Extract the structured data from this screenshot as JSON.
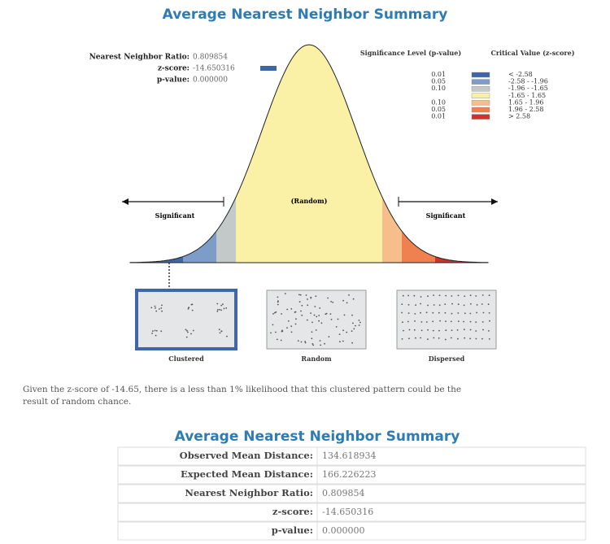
{
  "title": "Average Nearest Neighbor Summary",
  "stats": [
    {
      "label": "Nearest Neighbor Ratio:",
      "value": "0.809854"
    },
    {
      "label": "z-score:",
      "value": "-14.650316"
    },
    {
      "label": "p-value:",
      "value": "0.000000"
    }
  ],
  "legend": {
    "significance_header": "Significance Level (p-value)",
    "critical_header": "Critical Value (z-score)",
    "rows": [
      {
        "p": "0.01",
        "critical": "< -2.58",
        "color": "#3f67a8"
      },
      {
        "p": "0.05",
        "critical": "-2.58 - -1.96",
        "color": "#7d9cc8"
      },
      {
        "p": "0.10",
        "critical": "-1.96 - -1.65",
        "color": "#c3c9c8"
      },
      {
        "critical": "-1.65 - 1.65",
        "color": "#fbf1a6"
      },
      {
        "p": "0.10",
        "critical": "1.65 - 1.96",
        "color": "#f6be8a"
      },
      {
        "p": "0.05",
        "critical": "1.96 - 2.58",
        "color": "#ef8050"
      },
      {
        "p": "0.01",
        "critical": "> 2.58",
        "color": "#d0322b"
      }
    ]
  },
  "curve_labels": {
    "left": "Significant",
    "center": "(Random)",
    "right": "Significant"
  },
  "patterns": [
    "Clustered",
    "Random",
    "Dispersed"
  ],
  "conclusion": "Given the z-score of -14.65, there is a less than 1% likelihood that this clustered pattern could be the result of random chance.",
  "table": {
    "title": "Average Nearest Neighbor Summary",
    "rows": [
      [
        "Observed Mean Distance:",
        "134.618934"
      ],
      [
        "Expected Mean Distance:",
        "166.226223"
      ],
      [
        "Nearest Neighbor Ratio:",
        "0.809854"
      ],
      [
        "z-score:",
        "-14.650316"
      ],
      [
        "p-value:",
        "0.000000"
      ]
    ]
  }
}
